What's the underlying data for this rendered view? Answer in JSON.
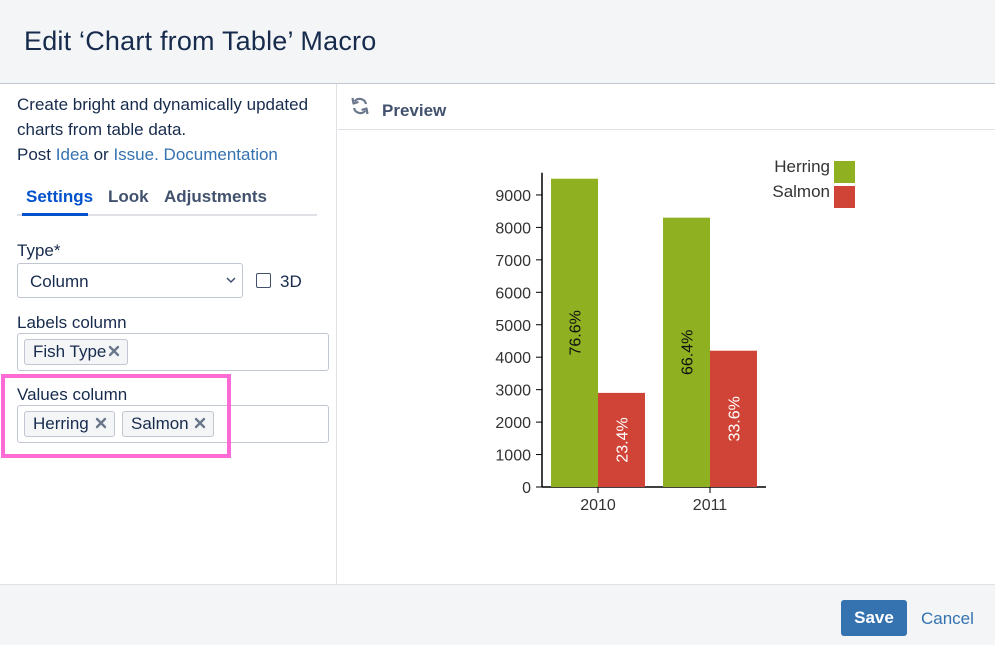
{
  "dialog": {
    "title": "Edit ‘Chart from Table’ Macro"
  },
  "intro": {
    "text": "Create bright and dynamically updated charts from table data.",
    "post_prefix": "Post",
    "idea_link": "Idea",
    "or_text": "or",
    "issue_link": "Issue.",
    "documentation_link": "Documentation"
  },
  "tabs": [
    {
      "label": "Settings",
      "active": true
    },
    {
      "label": "Look",
      "active": false
    },
    {
      "label": "Adjustments",
      "active": false
    }
  ],
  "form": {
    "type_label": "Type*",
    "type_value": "Column",
    "checkbox_3d_label": "3D",
    "checkbox_3d_checked": false,
    "labels_column_label": "Labels column",
    "labels_column_tags": [
      "Fish Type"
    ],
    "values_column_label": "Values column",
    "values_column_tags": [
      "Herring",
      "Salmon"
    ]
  },
  "preview": {
    "label": "Preview"
  },
  "chart_data": {
    "type": "bar",
    "categories": [
      "2010",
      "2011"
    ],
    "series": [
      {
        "name": "Herring",
        "values": [
          9500,
          8300
        ],
        "labels": [
          "76.6%",
          "66.4%"
        ],
        "color": "#8eb021"
      },
      {
        "name": "Salmon",
        "values": [
          2900,
          4200
        ],
        "labels": [
          "23.4%",
          "33.6%"
        ],
        "color": "#d04437"
      }
    ],
    "y_ticks": [
      0,
      1000,
      2000,
      3000,
      4000,
      5000,
      6000,
      7000,
      8000,
      9000
    ],
    "ylim": [
      0,
      9500
    ],
    "legend_position": "top-right"
  },
  "footer": {
    "save_label": "Save",
    "cancel_label": "Cancel"
  },
  "colors": {
    "link": "#3572b0",
    "primary": "#3572b0",
    "highlight": "#ff6ad5",
    "tab_active": "#0052cc"
  }
}
